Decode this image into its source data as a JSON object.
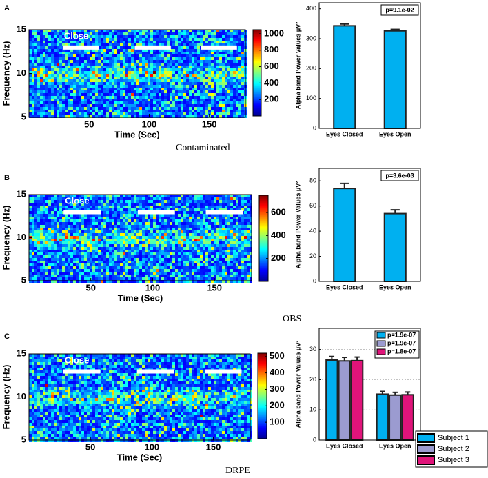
{
  "chart_data": [
    {
      "type": "spectrogram",
      "panel": "A",
      "xlabel": "Time (Sec)",
      "ylabel": "Frequency (Hz)",
      "xlim": [
        0,
        180
      ],
      "xticks": [
        50,
        100,
        150
      ],
      "ylim": [
        5,
        15
      ],
      "yticks": [
        5,
        10,
        15
      ],
      "annotation": "Close",
      "close_intervals": [
        [
          28,
          58
        ],
        [
          88,
          118
        ],
        [
          143,
          173
        ]
      ],
      "caption": "Contaminated",
      "clim": [
        0,
        1050
      ],
      "cticks": [
        200,
        400,
        600,
        800,
        1000
      ]
    },
    {
      "type": "bar",
      "ylabel": "Alpha band Power Values μV²",
      "categories": [
        "Eyes Closed",
        "Eyes Open"
      ],
      "values": [
        343,
        326
      ],
      "errors": [
        6,
        5
      ],
      "color": "#00b0f0",
      "ylim": [
        0,
        420
      ],
      "yticks": [
        0,
        100,
        200,
        300,
        400
      ],
      "annotation": "p=9.1e-02",
      "grid": false
    },
    {
      "type": "spectrogram",
      "panel": "B",
      "xlabel": "Time (Sec)",
      "ylabel": "Frequency (Hz)",
      "xlim": [
        0,
        180
      ],
      "xticks": [
        50,
        100,
        150
      ],
      "ylim": [
        5,
        15
      ],
      "yticks": [
        5,
        10,
        15
      ],
      "annotation": "Close",
      "close_intervals": [
        [
          28,
          58
        ],
        [
          88,
          118
        ],
        [
          143,
          173
        ]
      ],
      "caption": "OBS",
      "clim": [
        0,
        750
      ],
      "cticks": [
        200,
        400,
        600
      ]
    },
    {
      "type": "bar",
      "ylabel": "Alpha band Power Values μV²",
      "categories": [
        "Eyes Closed",
        "Eyes Open"
      ],
      "values": [
        74,
        54
      ],
      "errors": [
        4,
        3
      ],
      "color": "#00b0f0",
      "ylim": [
        0,
        90
      ],
      "yticks": [
        0,
        20,
        40,
        60,
        80
      ],
      "annotation": "p=3.6e-03",
      "grid": false
    },
    {
      "type": "spectrogram",
      "panel": "C",
      "xlabel": "Time (Sec)",
      "ylabel": "Frequency (Hz)",
      "xlim": [
        0,
        180
      ],
      "xticks": [
        50,
        100,
        150
      ],
      "ylim": [
        5,
        15
      ],
      "yticks": [
        5,
        10,
        15
      ],
      "annotation": "Close",
      "close_intervals": [
        [
          28,
          58
        ],
        [
          88,
          118
        ],
        [
          143,
          173
        ]
      ],
      "caption": "DRPE",
      "clim": [
        0,
        520
      ],
      "cticks": [
        100,
        200,
        300,
        400,
        500
      ]
    },
    {
      "type": "bar",
      "ylabel": "Alpha band Power Values μV²",
      "categories": [
        "Eyes Closed",
        "Eyes Open"
      ],
      "series": [
        {
          "name": "Subject 1",
          "color": "#00b0f0",
          "values": [
            26.5,
            15.2
          ],
          "errors": [
            1.2,
            0.9
          ]
        },
        {
          "name": "Subject 2",
          "color": "#9b9bd0",
          "values": [
            26.2,
            14.9
          ],
          "errors": [
            1.2,
            0.9
          ]
        },
        {
          "name": "Subject 3",
          "color": "#e0147a",
          "values": [
            26.3,
            15.0
          ],
          "errors": [
            1.2,
            0.9
          ]
        }
      ],
      "ylim": [
        0,
        37
      ],
      "yticks": [
        0,
        10,
        20,
        30
      ],
      "annotations": [
        "p=1.9e-07",
        "p=1.9e-07",
        "p=1.8e-07"
      ],
      "grid": true
    }
  ]
}
